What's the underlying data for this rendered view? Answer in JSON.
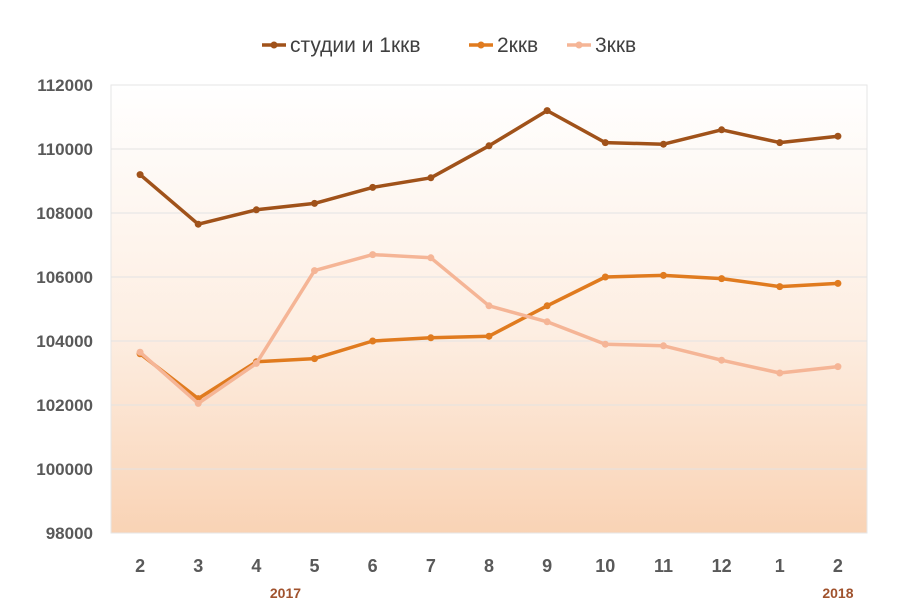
{
  "chart_data": {
    "type": "line",
    "title": "",
    "xlabel": "",
    "ylabel": "",
    "categories": [
      "2",
      "3",
      "4",
      "5",
      "6",
      "7",
      "8",
      "9",
      "10",
      "11",
      "12",
      "1",
      "2"
    ],
    "year_labels": [
      {
        "label": "2017",
        "category_index": 2.5
      },
      {
        "label": "2018",
        "category_index": 12
      }
    ],
    "ylim": [
      98000,
      112000
    ],
    "yticks": [
      98000,
      100000,
      102000,
      104000,
      106000,
      108000,
      110000,
      112000
    ],
    "grid": true,
    "legend_position": "top",
    "series": [
      {
        "name": "студии и 1ккв",
        "color": "#a0521a",
        "values": [
          109200,
          107650,
          108100,
          108300,
          108800,
          109100,
          110100,
          111200,
          110200,
          110150,
          110600,
          110200,
          110400
        ]
      },
      {
        "name": "2ккв",
        "color": "#e07b1f",
        "values": [
          103600,
          102200,
          103350,
          103450,
          104000,
          104100,
          104150,
          105100,
          106000,
          106050,
          105950,
          105700,
          105800
        ]
      },
      {
        "name": "3ккв",
        "color": "#f5b596",
        "values": [
          103650,
          102050,
          103300,
          106200,
          106700,
          106600,
          105100,
          104600,
          103900,
          103850,
          103400,
          103000,
          103200
        ]
      }
    ]
  }
}
